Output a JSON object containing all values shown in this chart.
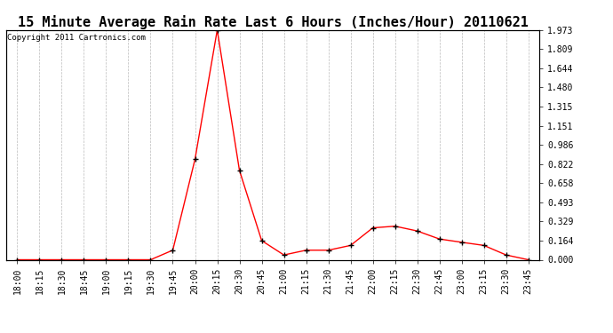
{
  "title": "15 Minute Average Rain Rate Last 6 Hours (Inches/Hour) 20110621",
  "copyright": "Copyright 2011 Cartronics.com",
  "x_labels": [
    "18:00",
    "18:15",
    "18:30",
    "18:45",
    "19:00",
    "19:15",
    "19:30",
    "19:45",
    "20:00",
    "20:15",
    "20:30",
    "20:45",
    "21:00",
    "21:15",
    "21:30",
    "21:45",
    "22:00",
    "22:15",
    "22:30",
    "22:45",
    "23:00",
    "23:15",
    "23:30",
    "23:45"
  ],
  "y_values": [
    0.0,
    0.0,
    0.0,
    0.0,
    0.0,
    0.0,
    0.0,
    0.082,
    0.863,
    1.973,
    0.767,
    0.164,
    0.041,
    0.082,
    0.082,
    0.123,
    0.274,
    0.288,
    0.247,
    0.178,
    0.15,
    0.123,
    0.041,
    0.0
  ],
  "yticks": [
    0.0,
    0.164,
    0.329,
    0.493,
    0.658,
    0.822,
    0.986,
    1.151,
    1.315,
    1.48,
    1.644,
    1.809,
    1.973
  ],
  "line_color": "#ff0000",
  "marker": "+",
  "marker_color": "#000000",
  "bg_color": "#ffffff",
  "grid_color": "#bbbbbb",
  "title_fontsize": 11,
  "copyright_fontsize": 6.5,
  "tick_fontsize": 7,
  "ylim": [
    0.0,
    1.973
  ],
  "figsize": [
    6.9,
    3.75
  ],
  "dpi": 100
}
